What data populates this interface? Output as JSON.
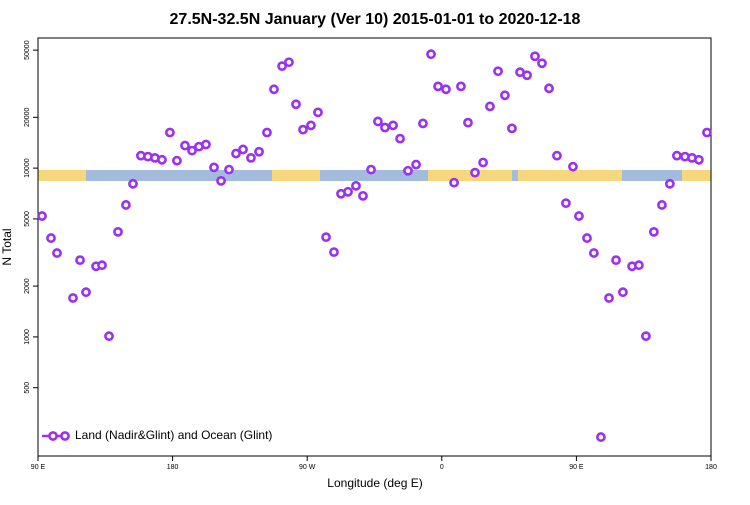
{
  "chart_data": {
    "type": "scatter",
    "title": "27.5N-32.5N January (Ver 10)   2015-01-01 to 2020-12-18",
    "xlabel": "Longitude (deg E)",
    "ylabel": "N Total",
    "yscale": "log",
    "xlim": [
      90,
      540
    ],
    "ylim": [
      197,
      59000
    ],
    "xticks": [
      {
        "value": 90,
        "label": "90 E"
      },
      180,
      {
        "value": 270,
        "label": "90 W"
      },
      {
        "value": 360,
        "label": "0"
      },
      {
        "value": 450,
        "label": "90 E"
      },
      {
        "value": 540,
        "label": "180"
      }
    ],
    "yticks": [
      500,
      1000,
      2000,
      5000,
      10000,
      20000,
      50000
    ],
    "legend": "bottom-left",
    "series": [
      {
        "name": "Land (Nadir&Glint) and Ocean (Glint)",
        "color": "#9b30f0",
        "x": [
          92.7,
          98.7,
          102.7,
          113.4,
          118.1,
          122.1,
          128.8,
          132.8,
          137.5,
          143.5,
          148.8,
          153.5,
          158.8,
          163.5,
          168.2,
          172.9,
          178.2,
          182.9,
          188.3,
          193.0,
          197.6,
          202.3,
          207.7,
          212.4,
          217.7,
          222.4,
          227.1,
          232.4,
          237.8,
          243.1,
          247.8,
          253.2,
          257.8,
          262.5,
          267.2,
          272.5,
          277.2,
          282.6,
          287.9,
          292.6,
          297.3,
          302.6,
          307.3,
          312.7,
          317.3,
          322.0,
          327.4,
          332.1,
          337.4,
          342.8,
          347.4,
          352.8,
          357.5,
          362.8,
          368.2,
          372.8,
          377.5,
          382.2,
          387.6,
          392.2,
          397.6,
          402.2,
          406.9,
          412.3,
          417.0,
          422.3,
          427.0,
          431.7,
          437.0,
          443.0,
          447.7,
          451.7,
          457.1,
          461.7,
          466.4,
          471.8,
          476.5,
          481.1,
          487.2,
          491.8,
          496.5,
          501.8,
          507.2,
          512.5,
          517.2,
          522.6,
          527.3,
          531.9,
          537.3
        ],
        "values": [
          5200,
          3850,
          3140,
          1700,
          2850,
          1840,
          2620,
          2660,
          1010,
          4190,
          6050,
          8070,
          11850,
          11700,
          11500,
          11200,
          16250,
          11070,
          13600,
          12700,
          13400,
          13800,
          10100,
          8400,
          9800,
          12200,
          12900,
          11500,
          12500,
          16250,
          29300,
          40200,
          42400,
          23900,
          16900,
          17900,
          21400,
          3900,
          3180,
          7050,
          7240,
          7850,
          6850,
          9800,
          18900,
          17400,
          17900,
          14950,
          9650,
          10500,
          18400,
          47300,
          30500,
          29300,
          8200,
          30500,
          18600,
          9400,
          10800,
          23200,
          37500,
          27000,
          17200,
          37000,
          35500,
          46000,
          41800,
          29700,
          11850,
          6200,
          10200,
          5200,
          3850,
          3140,
          255,
          1700,
          2850,
          1840,
          2620,
          2660,
          1010,
          4190,
          6050,
          8070,
          11850,
          11700,
          11500,
          11200,
          16250
        ]
      }
    ]
  }
}
